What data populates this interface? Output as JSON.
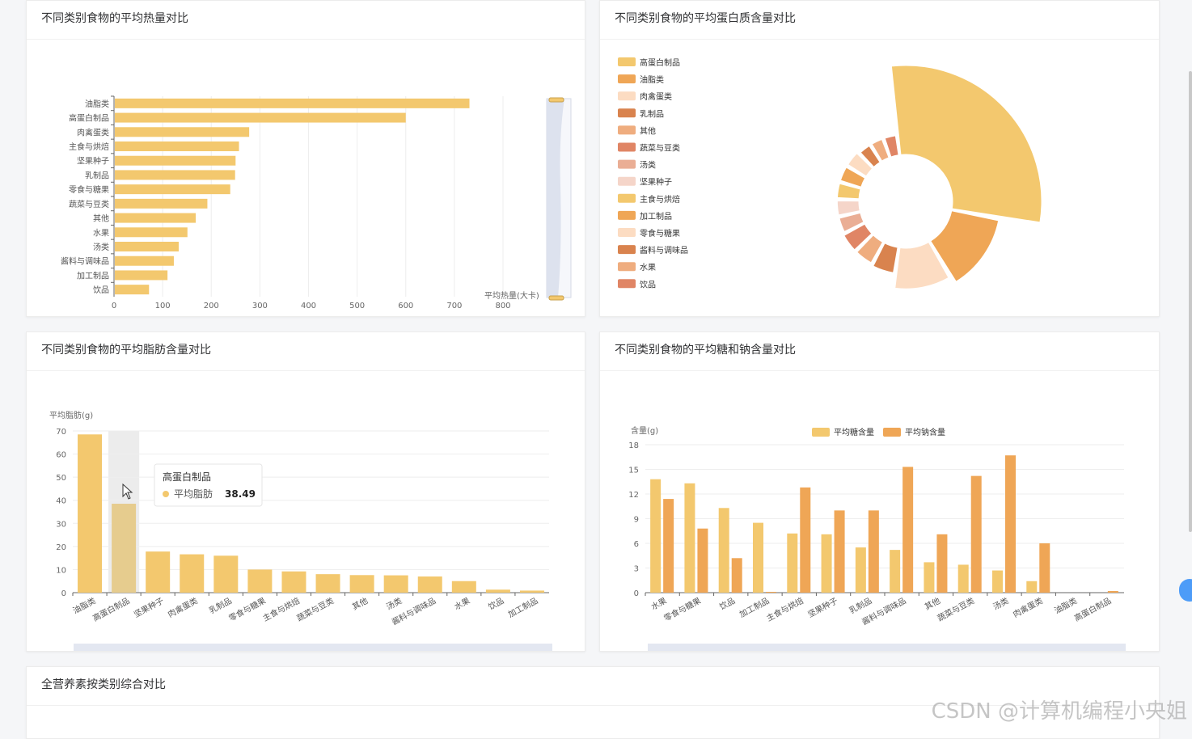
{
  "cards": {
    "calories": {
      "title": "不同类别食物的平均热量对比"
    },
    "protein": {
      "title": "不同类别食物的平均蛋白质含量对比"
    },
    "fat": {
      "title": "不同类别食物的平均脂肪含量对比"
    },
    "sugar_sodium": {
      "title": "不同类别食物的平均糖和钠含量对比"
    },
    "all": {
      "title": "全营养素按类别综合对比"
    }
  },
  "watermark": "CSDN @计算机编程小央姐",
  "colors": {
    "bar": "#f3c86e",
    "bar_highlight": "#e6cc8e",
    "sodium": "#efa656"
  },
  "chart_data": [
    {
      "id": "calories",
      "type": "bar",
      "orientation": "horizontal",
      "categories": [
        "油脂类",
        "高蛋白制品",
        "肉禽蛋类",
        "主食与烘焙",
        "坚果种子",
        "乳制品",
        "零食与糖果",
        "蔬菜与豆类",
        "其他",
        "水果",
        "汤类",
        "酱料与调味品",
        "加工制品",
        "饮品"
      ],
      "values": [
        731,
        600,
        278,
        257,
        250,
        249,
        239,
        192,
        168,
        151,
        133,
        123,
        110,
        72
      ],
      "xlabel": "平均热量(大卡)",
      "xlim": [
        0,
        800
      ],
      "xticks": [
        0,
        100,
        200,
        300,
        400,
        500,
        600,
        700,
        800
      ],
      "grid": true
    },
    {
      "id": "protein",
      "type": "pie",
      "variant": "rose",
      "legend_position": "left",
      "labels": [
        "高蛋白制品",
        "油脂类",
        "肉禽蛋类",
        "乳制品",
        "其他",
        "蔬菜与豆类",
        "汤类",
        "坚果种子",
        "主食与烘焙",
        "加工制品",
        "零食与糖果",
        "酱料与调味品",
        "水果",
        "饮品"
      ],
      "values": [
        22,
        10,
        8,
        4,
        3.5,
        3.5,
        3,
        3,
        3,
        3,
        3,
        2.5,
        2.5,
        2.5
      ],
      "colors": [
        "#f3c86e",
        "#efa656",
        "#fcdcc2",
        "#d9834e",
        "#efad7f",
        "#e08565",
        "#eaae95",
        "#f5d5c9",
        "#f3c86e",
        "#efa656",
        "#fcdcc2",
        "#d9834e",
        "#efad7f",
        "#e08565"
      ]
    },
    {
      "id": "fat",
      "type": "bar",
      "categories": [
        "油脂类",
        "高蛋白制品",
        "坚果种子",
        "肉禽蛋类",
        "乳制品",
        "零食与糖果",
        "主食与烘焙",
        "蔬菜与豆类",
        "其他",
        "汤类",
        "酱料与调味品",
        "水果",
        "饮品",
        "加工制品"
      ],
      "values": [
        68.5,
        38.49,
        17.8,
        16.6,
        16.0,
        10.0,
        9.2,
        8.0,
        7.6,
        7.5,
        7.0,
        5.0,
        1.3,
        0.9
      ],
      "ylabel": "平均脂肪(g)",
      "ylim": [
        0,
        70
      ],
      "yticks": [
        0,
        10,
        20,
        30,
        40,
        50,
        60,
        70
      ],
      "grid": true,
      "tooltip": {
        "category": "高蛋白制品",
        "series": "平均脂肪",
        "value": "38.49"
      }
    },
    {
      "id": "sugar_sodium",
      "type": "bar",
      "categories": [
        "水果",
        "零食与糖果",
        "饮品",
        "加工制品",
        "主食与烘焙",
        "坚果种子",
        "乳制品",
        "酱料与调味品",
        "其他",
        "蔬菜与豆类",
        "汤类",
        "肉禽蛋类",
        "油脂类",
        "高蛋白制品"
      ],
      "series": [
        {
          "name": "平均糖含量",
          "values": [
            13.8,
            13.3,
            10.3,
            8.5,
            7.2,
            7.1,
            5.5,
            5.2,
            3.7,
            3.4,
            2.7,
            1.4,
            0.0,
            0.0
          ]
        },
        {
          "name": "平均钠含量",
          "values": [
            11.4,
            7.8,
            4.2,
            0.1,
            12.8,
            10.0,
            10.0,
            15.3,
            7.1,
            14.2,
            16.7,
            6.0,
            0.0,
            0.2
          ]
        }
      ],
      "ylabel": "含量(g)",
      "ylim": [
        0,
        18
      ],
      "yticks": [
        0,
        3,
        6,
        9,
        12,
        15,
        18
      ],
      "legend_position": "top",
      "grid": true
    }
  ]
}
